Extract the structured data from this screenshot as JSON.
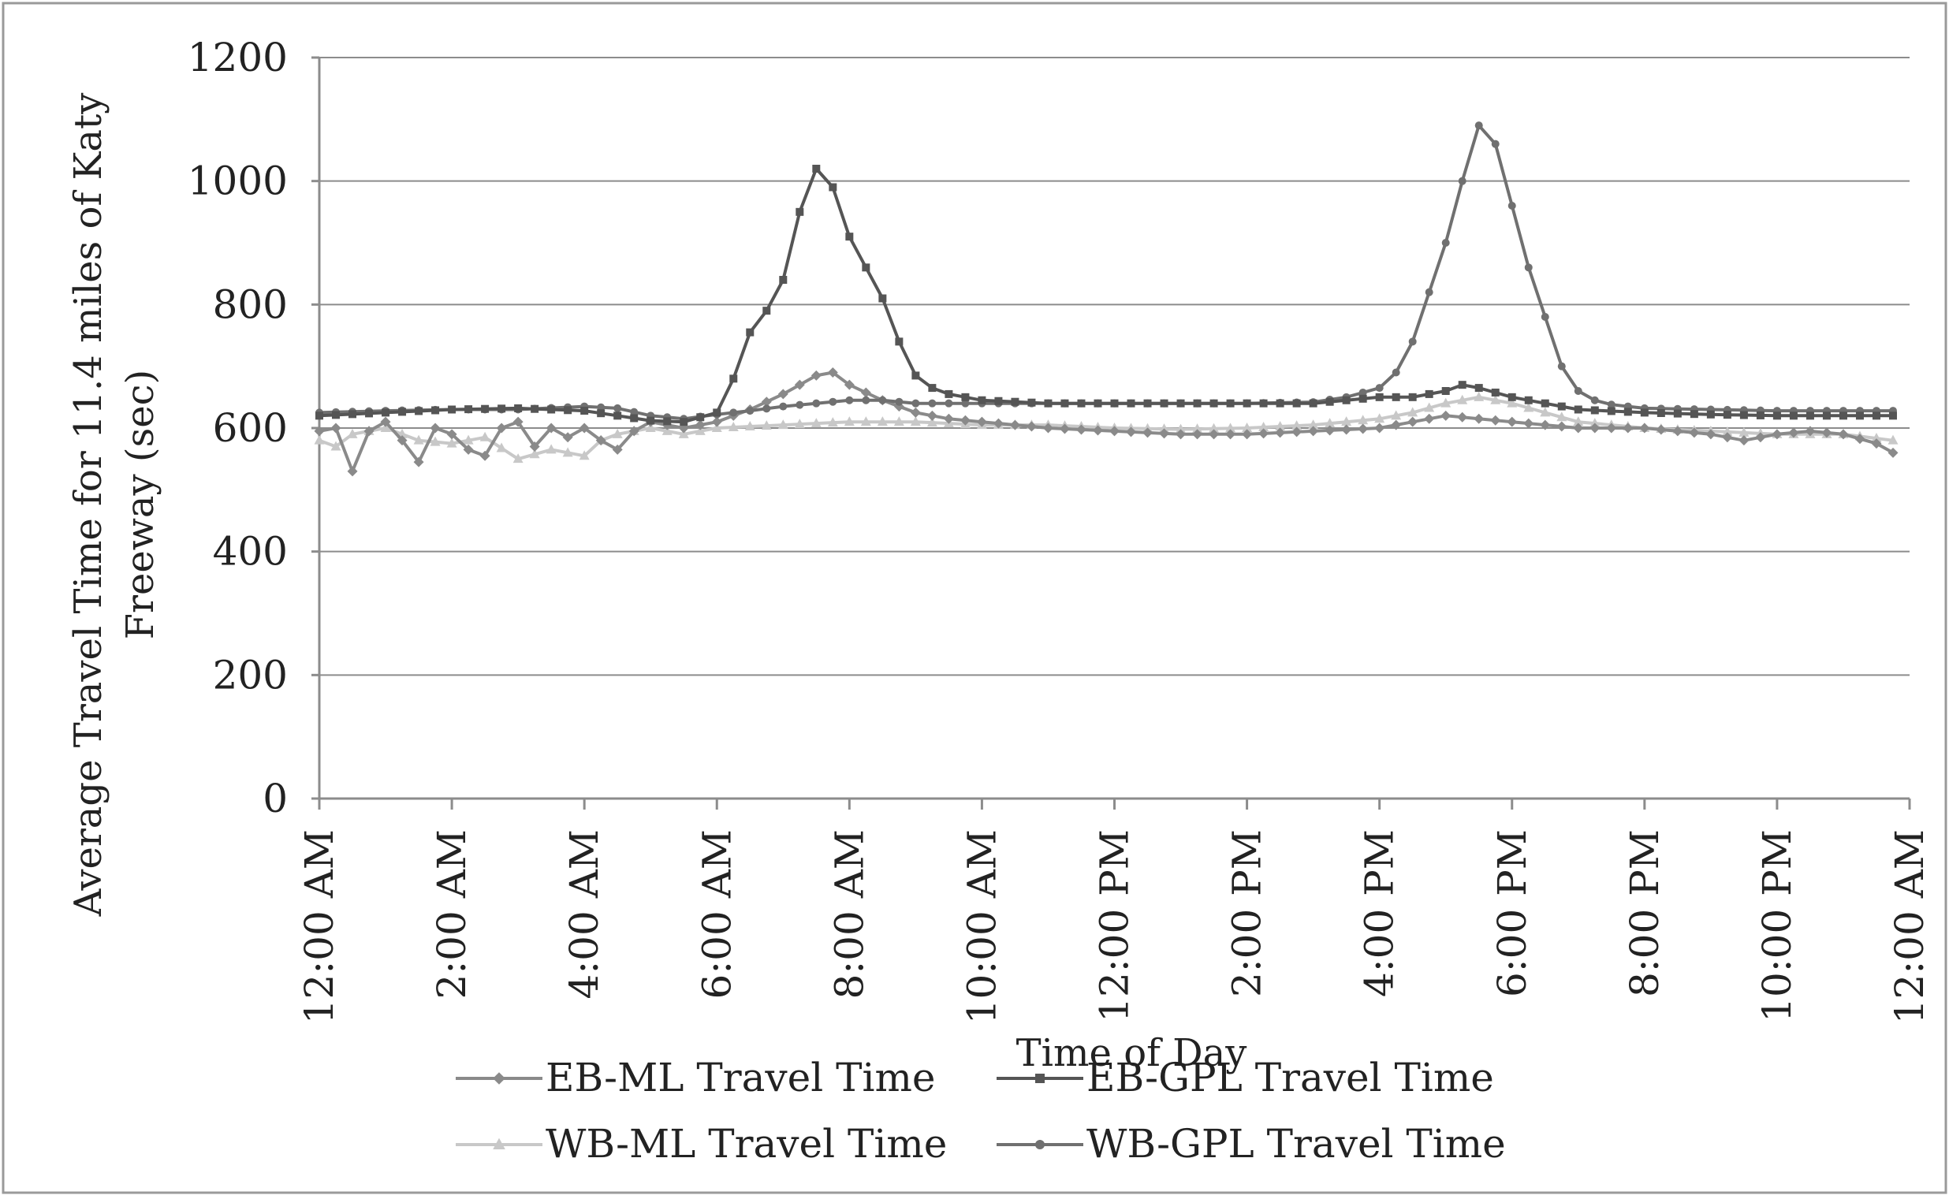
{
  "chart_data": {
    "type": "line",
    "title": "",
    "xlabel": "Time of Day",
    "ylabel_lines": [
      "Average Travel Time for 11.4 miles of Katy",
      "Freeway (sec)"
    ],
    "ylim": [
      0,
      1200
    ],
    "yticks": [
      0,
      200,
      400,
      600,
      800,
      1000,
      1200
    ],
    "xlim_hours": [
      0,
      24
    ],
    "xtick_labels": [
      "12:00 AM",
      "2:00 AM",
      "4:00 AM",
      "6:00 AM",
      "8:00 AM",
      "10:00 AM",
      "12:00 PM",
      "2:00 PM",
      "4:00 PM",
      "6:00 PM",
      "8:00 PM",
      "10:00 PM",
      "12:00 AM"
    ],
    "grid": "horizontal",
    "legend_position": "bottom",
    "series": [
      {
        "name": "EB-ML Travel Time",
        "color": "#8a8a8a",
        "marker": "diamond",
        "keypoints": [
          [
            0,
            595
          ],
          [
            0.25,
            600
          ],
          [
            0.5,
            530
          ],
          [
            0.75,
            595
          ],
          [
            1,
            610
          ],
          [
            1.25,
            580
          ],
          [
            1.5,
            545
          ],
          [
            1.75,
            600
          ],
          [
            2,
            590
          ],
          [
            2.25,
            565
          ],
          [
            2.5,
            555
          ],
          [
            2.75,
            600
          ],
          [
            3,
            610
          ],
          [
            3.25,
            570
          ],
          [
            3.5,
            600
          ],
          [
            3.75,
            585
          ],
          [
            4,
            600
          ],
          [
            4.25,
            580
          ],
          [
            4.5,
            565
          ],
          [
            4.75,
            595
          ],
          [
            5,
            610
          ],
          [
            5.5,
            600
          ],
          [
            6,
            610
          ],
          [
            6.5,
            630
          ],
          [
            7,
            655
          ],
          [
            7.25,
            670
          ],
          [
            7.5,
            685
          ],
          [
            7.75,
            690
          ],
          [
            8,
            670
          ],
          [
            8.5,
            645
          ],
          [
            9,
            625
          ],
          [
            9.5,
            615
          ],
          [
            10,
            610
          ],
          [
            11,
            600
          ],
          [
            12,
            595
          ],
          [
            13,
            590
          ],
          [
            14,
            590
          ],
          [
            15,
            595
          ],
          [
            16,
            600
          ],
          [
            16.5,
            610
          ],
          [
            17,
            620
          ],
          [
            17.5,
            615
          ],
          [
            18,
            610
          ],
          [
            19,
            600
          ],
          [
            20,
            600
          ],
          [
            20.5,
            595
          ],
          [
            21,
            590
          ],
          [
            21.5,
            580
          ],
          [
            22,
            590
          ],
          [
            22.5,
            595
          ],
          [
            23,
            590
          ],
          [
            23.5,
            575
          ],
          [
            23.75,
            560
          ]
        ]
      },
      {
        "name": "EB-GPL Travel Time",
        "color": "#555555",
        "marker": "square",
        "keypoints": [
          [
            0,
            620
          ],
          [
            1,
            625
          ],
          [
            2,
            630
          ],
          [
            3,
            632
          ],
          [
            4,
            628
          ],
          [
            4.5,
            620
          ],
          [
            5,
            612
          ],
          [
            5.5,
            610
          ],
          [
            6,
            625
          ],
          [
            6.25,
            680
          ],
          [
            6.5,
            755
          ],
          [
            6.75,
            790
          ],
          [
            7,
            840
          ],
          [
            7.25,
            950
          ],
          [
            7.5,
            1020
          ],
          [
            7.75,
            990
          ],
          [
            8,
            910
          ],
          [
            8.25,
            860
          ],
          [
            8.5,
            810
          ],
          [
            8.75,
            740
          ],
          [
            9,
            685
          ],
          [
            9.25,
            665
          ],
          [
            9.5,
            655
          ],
          [
            10,
            645
          ],
          [
            11,
            640
          ],
          [
            12,
            640
          ],
          [
            13,
            640
          ],
          [
            14,
            640
          ],
          [
            15,
            640
          ],
          [
            16,
            650
          ],
          [
            16.5,
            650
          ],
          [
            17,
            660
          ],
          [
            17.25,
            670
          ],
          [
            17.5,
            665
          ],
          [
            18,
            650
          ],
          [
            18.5,
            640
          ],
          [
            19,
            630
          ],
          [
            20,
            625
          ],
          [
            21,
            622
          ],
          [
            22,
            620
          ],
          [
            23,
            620
          ],
          [
            23.75,
            620
          ]
        ]
      },
      {
        "name": "WB-ML Travel Time",
        "color": "#c8c8c8",
        "marker": "triangle",
        "keypoints": [
          [
            0,
            580
          ],
          [
            0.25,
            570
          ],
          [
            0.5,
            590
          ],
          [
            1,
            600
          ],
          [
            1.5,
            580
          ],
          [
            2,
            575
          ],
          [
            2.5,
            585
          ],
          [
            3,
            550
          ],
          [
            3.5,
            565
          ],
          [
            4,
            555
          ],
          [
            4.25,
            580
          ],
          [
            4.5,
            590
          ],
          [
            5,
            600
          ],
          [
            5.5,
            590
          ],
          [
            6,
            600
          ],
          [
            7,
            605
          ],
          [
            8,
            610
          ],
          [
            9,
            610
          ],
          [
            10,
            605
          ],
          [
            11,
            605
          ],
          [
            12,
            600
          ],
          [
            13,
            598
          ],
          [
            14,
            600
          ],
          [
            15,
            605
          ],
          [
            16,
            615
          ],
          [
            16.5,
            625
          ],
          [
            17,
            640
          ],
          [
            17.5,
            650
          ],
          [
            18,
            640
          ],
          [
            18.5,
            625
          ],
          [
            19,
            610
          ],
          [
            20,
            600
          ],
          [
            21,
            595
          ],
          [
            22,
            590
          ],
          [
            23,
            590
          ],
          [
            23.75,
            580
          ]
        ]
      },
      {
        "name": "WB-GPL Travel Time",
        "color": "#707070",
        "marker": "circle",
        "keypoints": [
          [
            0,
            625
          ],
          [
            1,
            628
          ],
          [
            2,
            630
          ],
          [
            3,
            630
          ],
          [
            4,
            635
          ],
          [
            4.5,
            632
          ],
          [
            5,
            620
          ],
          [
            5.5,
            615
          ],
          [
            6,
            622
          ],
          [
            6.5,
            628
          ],
          [
            7,
            635
          ],
          [
            7.5,
            640
          ],
          [
            8,
            645
          ],
          [
            8.5,
            645
          ],
          [
            9,
            640
          ],
          [
            10,
            640
          ],
          [
            11,
            640
          ],
          [
            12,
            640
          ],
          [
            13,
            640
          ],
          [
            14,
            640
          ],
          [
            15,
            642
          ],
          [
            15.5,
            650
          ],
          [
            16,
            665
          ],
          [
            16.25,
            690
          ],
          [
            16.5,
            740
          ],
          [
            16.75,
            820
          ],
          [
            17,
            900
          ],
          [
            17.25,
            1000
          ],
          [
            17.5,
            1090
          ],
          [
            17.75,
            1060
          ],
          [
            18,
            960
          ],
          [
            18.25,
            860
          ],
          [
            18.5,
            780
          ],
          [
            18.75,
            700
          ],
          [
            19,
            660
          ],
          [
            19.25,
            645
          ],
          [
            19.5,
            638
          ],
          [
            20,
            632
          ],
          [
            21,
            630
          ],
          [
            22,
            628
          ],
          [
            23,
            628
          ],
          [
            23.75,
            628
          ]
        ]
      }
    ]
  }
}
